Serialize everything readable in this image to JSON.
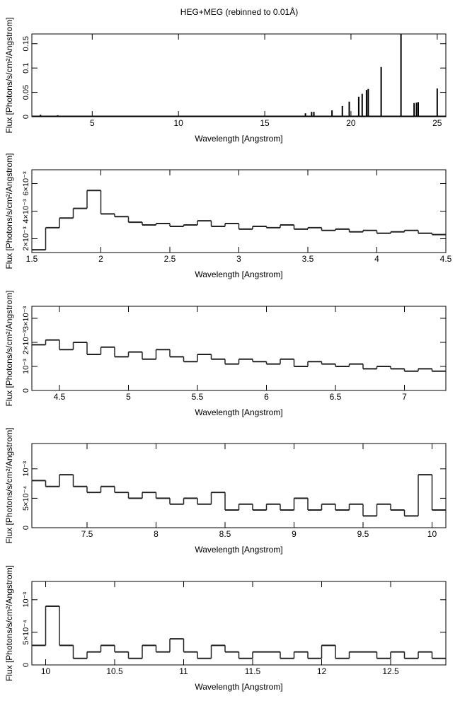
{
  "title": "HEG+MEG (rebinned to 0.01Å)",
  "chart_data": [
    {
      "type": "needle",
      "x_label": "Wavelength [Angstrom]",
      "y_label": "Flux [Photons/s/cm²/Angstrom]",
      "xlim": [
        1.5,
        25.5
      ],
      "ylim": [
        0,
        0.17
      ],
      "xticks": [
        5,
        10,
        15,
        20,
        25
      ],
      "yticks": [
        0,
        0.05,
        0.1,
        0.15
      ],
      "color": "#000000",
      "x": [
        2,
        3,
        4,
        5,
        7,
        10,
        13,
        16,
        17.36,
        17.72,
        17.85,
        18.9,
        19.5,
        19.9,
        20.45,
        20.65,
        20.9,
        21.0,
        21.75,
        22.9,
        23.66,
        23.8,
        23.9,
        25.0
      ],
      "values": [
        0.004,
        0.003,
        0.002,
        0.002,
        0.002,
        0.002,
        0.002,
        0.002,
        0.007,
        0.01,
        0.01,
        0.013,
        0.022,
        0.031,
        0.041,
        0.047,
        0.055,
        0.057,
        0.102,
        0.17,
        0.028,
        0.029,
        0.03,
        0.058
      ]
    },
    {
      "type": "step",
      "x_label": "Wavelength [Angstrom]",
      "y_label": "Flux [Photons/s/cm²/Angstrom]",
      "xlim": [
        1.5,
        4.5
      ],
      "ylim": [
        0.001,
        0.007
      ],
      "xticks": [
        1.5,
        2,
        2.5,
        3,
        3.5,
        4,
        4.5
      ],
      "yticks": [
        {
          "value": 0.002,
          "label": "2×10⁻³"
        },
        {
          "value": 0.004,
          "label": "4×10⁻³"
        },
        {
          "value": 0.006,
          "label": "6×10⁻³"
        }
      ],
      "color": "#222222",
      "x": [
        1.5,
        1.6,
        1.7,
        1.8,
        1.9,
        2.0,
        2.1,
        2.2,
        2.3,
        2.4,
        2.5,
        2.6,
        2.7,
        2.8,
        2.9,
        3.0,
        3.1,
        3.2,
        3.3,
        3.4,
        3.5,
        3.6,
        3.7,
        3.8,
        3.9,
        4.0,
        4.1,
        4.2,
        4.3,
        4.4
      ],
      "values": [
        0.0012,
        0.0028,
        0.0035,
        0.0042,
        0.0055,
        0.0038,
        0.0036,
        0.0032,
        0.003,
        0.0031,
        0.0029,
        0.003,
        0.0033,
        0.0029,
        0.0031,
        0.0027,
        0.0029,
        0.0028,
        0.003,
        0.0027,
        0.0028,
        0.0026,
        0.0027,
        0.0025,
        0.0026,
        0.0024,
        0.0025,
        0.0026,
        0.0024,
        0.0023
      ]
    },
    {
      "type": "step",
      "x_label": "Wavelength [Angstrom]",
      "y_label": "Flux [Photons/s/cm²/Angstrom]",
      "xlim": [
        4.3,
        7.3
      ],
      "ylim": [
        0,
        0.0035
      ],
      "xticks": [
        4.5,
        5,
        5.5,
        6,
        6.5,
        7
      ],
      "yticks": [
        0,
        {
          "value": 0.001,
          "label": "10⁻³"
        },
        {
          "value": 0.002,
          "label": "2×10⁻³"
        },
        {
          "value": 0.003,
          "label": "3×10⁻³"
        }
      ],
      "color": "#222222",
      "x": [
        4.3,
        4.4,
        4.5,
        4.6,
        4.7,
        4.8,
        4.9,
        5.0,
        5.1,
        5.2,
        5.3,
        5.4,
        5.5,
        5.6,
        5.7,
        5.8,
        5.9,
        6.0,
        6.1,
        6.2,
        6.3,
        6.4,
        6.5,
        6.6,
        6.7,
        6.8,
        6.9,
        7.0,
        7.1,
        7.2
      ],
      "values": [
        0.0019,
        0.0021,
        0.0017,
        0.002,
        0.0015,
        0.0018,
        0.0014,
        0.0016,
        0.0013,
        0.0017,
        0.0014,
        0.0012,
        0.0015,
        0.0013,
        0.0011,
        0.0013,
        0.0012,
        0.0011,
        0.0013,
        0.001,
        0.0012,
        0.0011,
        0.001,
        0.0011,
        0.0009,
        0.001,
        0.0009,
        0.0008,
        0.0009,
        0.0008
      ]
    },
    {
      "type": "step",
      "x_label": "Wavelength [Angstrom]",
      "y_label": "Flux [Photons/s/cm²/Angstrom]",
      "xlim": [
        7.1,
        10.1
      ],
      "ylim": [
        0,
        0.00143
      ],
      "xticks": [
        7.5,
        8,
        8.5,
        9,
        9.5,
        10
      ],
      "yticks": [
        0,
        {
          "value": 0.0005,
          "label": "5×10⁻⁴"
        },
        {
          "value": 0.001,
          "label": "10⁻³"
        }
      ],
      "color": "#222222",
      "x": [
        7.1,
        7.2,
        7.3,
        7.4,
        7.5,
        7.6,
        7.7,
        7.8,
        7.9,
        8.0,
        8.1,
        8.2,
        8.3,
        8.4,
        8.5,
        8.6,
        8.7,
        8.8,
        8.9,
        9.0,
        9.1,
        9.2,
        9.3,
        9.4,
        9.5,
        9.6,
        9.7,
        9.8,
        9.9,
        10.0
      ],
      "values": [
        0.0008,
        0.0007,
        0.0009,
        0.0007,
        0.0006,
        0.0007,
        0.0006,
        0.0005,
        0.0006,
        0.0005,
        0.0004,
        0.0005,
        0.0004,
        0.0006,
        0.0003,
        0.0004,
        0.0003,
        0.0004,
        0.0003,
        0.0005,
        0.0003,
        0.0004,
        0.0003,
        0.0004,
        0.0002,
        0.0004,
        0.0003,
        0.0002,
        0.0009,
        0.0003
      ]
    },
    {
      "type": "step",
      "x_label": "Wavelength [Angstrom]",
      "y_label": "Flux [Photons/s/cm²/Angstrom]",
      "xlim": [
        9.9,
        12.9
      ],
      "ylim": [
        0,
        0.00128
      ],
      "xticks": [
        10,
        10.5,
        11,
        11.5,
        12,
        12.5
      ],
      "yticks": [
        0,
        {
          "value": 0.0005,
          "label": "5×10⁻⁴"
        },
        {
          "value": 0.001,
          "label": "10⁻³"
        }
      ],
      "color": "#222222",
      "x": [
        9.9,
        10.0,
        10.1,
        10.2,
        10.3,
        10.4,
        10.5,
        10.6,
        10.7,
        10.8,
        10.9,
        11.0,
        11.1,
        11.2,
        11.3,
        11.4,
        11.5,
        11.6,
        11.7,
        11.8,
        11.9,
        12.0,
        12.1,
        12.2,
        12.3,
        12.4,
        12.5,
        12.6,
        12.7,
        12.8
      ],
      "values": [
        0.0003,
        0.0009,
        0.0003,
        0.0001,
        0.0002,
        0.0003,
        0.0002,
        0.0001,
        0.0003,
        0.0002,
        0.0004,
        0.0002,
        0.0001,
        0.0003,
        0.0002,
        0.0001,
        0.0002,
        0.0002,
        0.0001,
        0.0002,
        0.0001,
        0.0003,
        0.0001,
        0.0002,
        0.0002,
        0.0001,
        0.0002,
        0.0001,
        0.0002,
        0.0001
      ]
    }
  ]
}
